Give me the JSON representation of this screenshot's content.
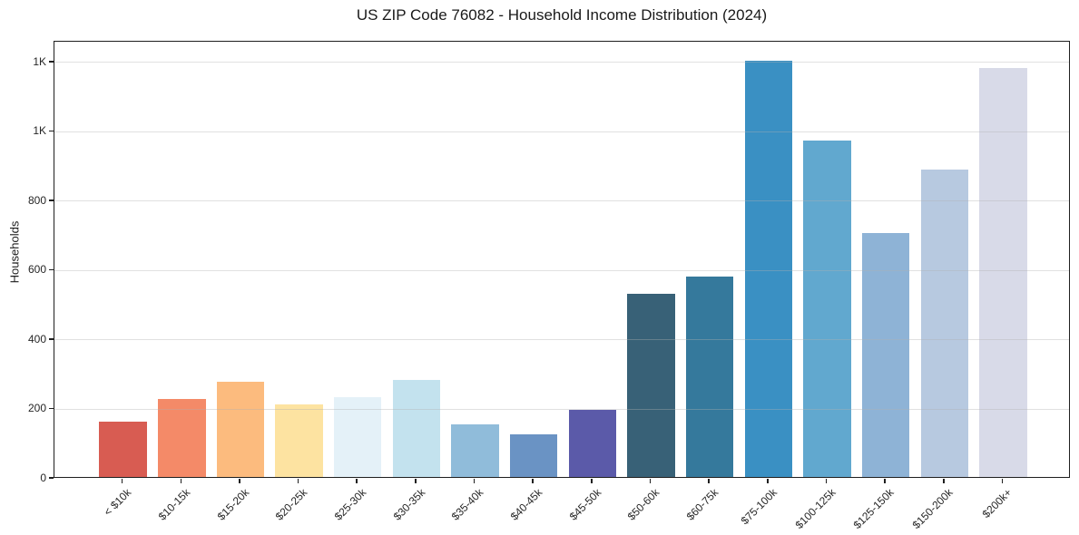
{
  "chart_data": {
    "type": "bar",
    "title": "US ZIP Code 76082 - Household Income Distribution (2024)",
    "xlabel": "",
    "ylabel": "Households",
    "ylim": [
      0,
      1260
    ],
    "grid": "horizontal, drawn above bars",
    "legend": "none",
    "categories": [
      "< $10k",
      "$10-15k",
      "$15-20k",
      "$20-25k",
      "$25-30k",
      "$30-35k",
      "$35-40k",
      "$40-45k",
      "$45-50k",
      "$50-60k",
      "$60-75k",
      "$75-100k",
      "$100-125k",
      "$125-150k",
      "$150-200k",
      "$200k+"
    ],
    "values": [
      160,
      225,
      274,
      209,
      231,
      281,
      152,
      123,
      193,
      529,
      577,
      1200,
      970,
      703,
      885,
      1178
    ],
    "bar_colors": [
      "#d85c52",
      "#f48a68",
      "#fcbb7e",
      "#fde3a1",
      "#e4f1f8",
      "#c3e2ee",
      "#90bcda",
      "#6a93c4",
      "#5b5aa9",
      "#386177",
      "#35799c",
      "#3a90c3",
      "#61a8cf",
      "#8eb3d6",
      "#b7c9e0",
      "#d8dae8"
    ],
    "yticks": [
      {
        "value": 0,
        "label": "0"
      },
      {
        "value": 200,
        "label": "200"
      },
      {
        "value": 400,
        "label": "400"
      },
      {
        "value": 600,
        "label": "600"
      },
      {
        "value": 800,
        "label": "800"
      },
      {
        "value": 1000,
        "label": "1K"
      },
      {
        "value": 1200,
        "label": "1K"
      }
    ],
    "colors": {
      "background": "#ffffff",
      "spine": "#1f1f1f",
      "gridline": "#b0b0b0",
      "text": "#1a1a1a"
    }
  }
}
